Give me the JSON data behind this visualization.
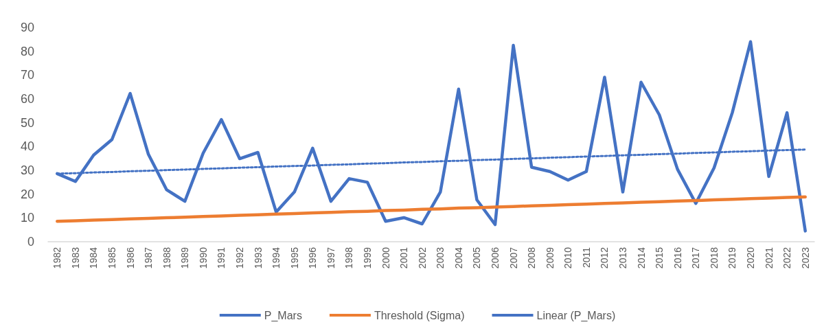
{
  "chart_data": {
    "type": "line",
    "categories": [
      "1982",
      "1983",
      "1984",
      "1985",
      "1986",
      "1987",
      "1988",
      "1989",
      "1990",
      "1991",
      "1992",
      "1993",
      "1994",
      "1995",
      "1996",
      "1997",
      "1998",
      "1999",
      "2000",
      "2001",
      "2002",
      "2003",
      "2004",
      "2005",
      "2006",
      "2007",
      "2008",
      "2009",
      "2010",
      "2011",
      "2012",
      "2013",
      "2014",
      "2015",
      "2016",
      "2017",
      "2018",
      "2019",
      "2020",
      "2021",
      "2022",
      "2023"
    ],
    "series": [
      {
        "name": "P_Mars",
        "color": "#4472c4",
        "values": [
          28.6,
          25.3,
          36.4,
          42.9,
          62.3,
          36.7,
          21.8,
          17,
          37.2,
          51.3,
          34.9,
          37.5,
          12.5,
          20.9,
          39.3,
          17,
          26.5,
          25,
          8.6,
          10.1,
          7.5,
          20.9,
          64.1,
          17.6,
          7.2,
          82.5,
          31.3,
          29.5,
          25.9,
          29.5,
          69.1,
          20.9,
          67,
          53.3,
          30.4,
          16.1,
          31,
          54.2,
          84,
          27.4,
          54.2,
          4.5
        ]
      },
      {
        "name": "Threshold (Sigma)",
        "color": "#ed7d31",
        "values": [
          8.6,
          8.8,
          9.1,
          9.3,
          9.6,
          9.8,
          10.1,
          10.3,
          10.6,
          10.8,
          11.1,
          11.3,
          11.6,
          11.8,
          12.1,
          12.3,
          12.6,
          12.8,
          13.1,
          13.3,
          13.6,
          13.8,
          14.1,
          14.3,
          14.6,
          14.8,
          15.1,
          15.3,
          15.6,
          15.8,
          16.1,
          16.3,
          16.6,
          16.8,
          17.1,
          17.3,
          17.6,
          17.8,
          18.1,
          18.3,
          18.6,
          18.8
        ]
      },
      {
        "name": "Linear (P_Mars)",
        "color": "#4472c4",
        "values": [
          28.6,
          28.8,
          29.1,
          29.3,
          29.6,
          29.8,
          30.1,
          30.3,
          30.6,
          30.8,
          31.1,
          31.3,
          31.6,
          31.8,
          32.0,
          32.3,
          32.5,
          32.8,
          33.0,
          33.3,
          33.5,
          33.8,
          34.0,
          34.3,
          34.5,
          34.8,
          35.0,
          35.3,
          35.5,
          35.8,
          36.0,
          36.3,
          36.5,
          36.8,
          37.0,
          37.3,
          37.5,
          37.8,
          38.0,
          38.3,
          38.5,
          38.7
        ],
        "line_style": "dotted"
      }
    ],
    "ylim": [
      0,
      90
    ],
    "yticks": [
      0,
      10,
      20,
      30,
      40,
      50,
      60,
      70,
      80,
      90
    ],
    "grid": false,
    "legend": "bottom",
    "marker": "none",
    "line_style": "solid"
  }
}
